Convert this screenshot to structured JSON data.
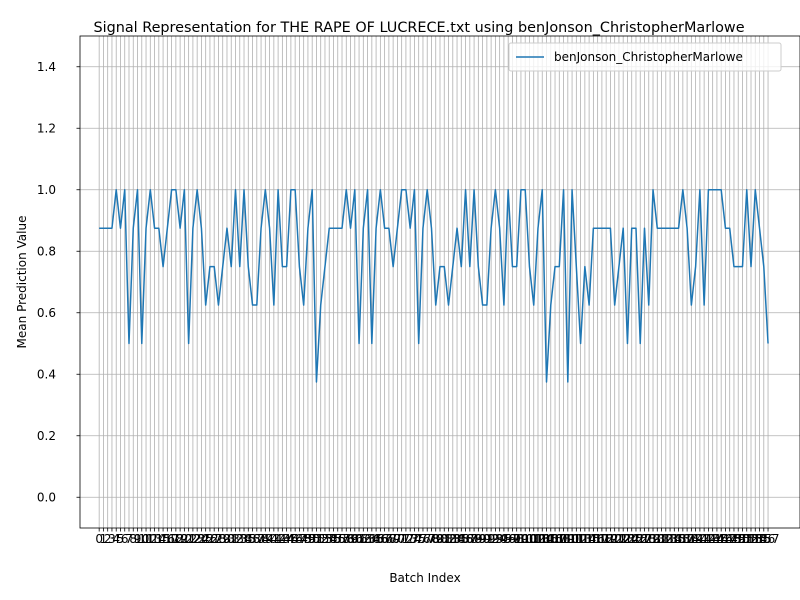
{
  "chart_data": {
    "type": "line",
    "title": "Signal Representation for THE RAPE OF LUCRECE.txt using benJonson_ChristopherMarlowe",
    "xlabel": "Batch Index",
    "ylabel": "Mean Prediction Value",
    "ylim": [
      -0.1,
      1.5
    ],
    "xlim": [
      -4.5,
      164.5
    ],
    "yticks": [
      0.0,
      0.2,
      0.4,
      0.6,
      0.8,
      1.0,
      1.2,
      1.4
    ],
    "grid": true,
    "legend_position": "top-right",
    "series": [
      {
        "name": "benJonson_ChristopherMarlowe",
        "color": "#1f77b4",
        "x_start": 0,
        "values": [
          0.875,
          0.875,
          0.875,
          0.875,
          1.0,
          0.875,
          1.0,
          0.5,
          0.875,
          1.0,
          0.5,
          0.875,
          1.0,
          0.875,
          0.875,
          0.75,
          0.875,
          1.0,
          1.0,
          0.875,
          1.0,
          0.5,
          0.875,
          1.0,
          0.875,
          0.625,
          0.75,
          0.75,
          0.625,
          0.75,
          0.875,
          0.75,
          1.0,
          0.75,
          1.0,
          0.75,
          0.625,
          0.625,
          0.875,
          1.0,
          0.875,
          0.625,
          1.0,
          0.75,
          0.75,
          1.0,
          1.0,
          0.75,
          0.625,
          0.875,
          1.0,
          0.375,
          0.625,
          0.75,
          0.875,
          0.875,
          0.875,
          0.875,
          1.0,
          0.875,
          1.0,
          0.5,
          0.875,
          1.0,
          0.5,
          0.875,
          1.0,
          0.875,
          0.875,
          0.75,
          0.875,
          1.0,
          1.0,
          0.875,
          1.0,
          0.5,
          0.875,
          1.0,
          0.875,
          0.625,
          0.75,
          0.75,
          0.625,
          0.75,
          0.875,
          0.75,
          1.0,
          0.75,
          1.0,
          0.75,
          0.625,
          0.625,
          0.875,
          1.0,
          0.875,
          0.625,
          1.0,
          0.75,
          0.75,
          1.0,
          1.0,
          0.75,
          0.625,
          0.875,
          1.0,
          0.375,
          0.625,
          0.75,
          0.75,
          1.0,
          0.375,
          1.0,
          0.75,
          0.5,
          0.75,
          0.625,
          0.875,
          0.875,
          0.875,
          0.875,
          0.875,
          0.625,
          0.75,
          0.875,
          0.5,
          0.875,
          0.875,
          0.5,
          0.875,
          0.625,
          1.0,
          0.875,
          0.875,
          0.875,
          0.875,
          0.875,
          0.875,
          1.0,
          0.875,
          0.625,
          0.75,
          1.0,
          0.625,
          1.0,
          1.0,
          1.0,
          1.0,
          0.875,
          0.875,
          0.75,
          0.75,
          0.75,
          1.0,
          0.75,
          1.0,
          0.875,
          0.75,
          0.5
        ]
      }
    ]
  }
}
